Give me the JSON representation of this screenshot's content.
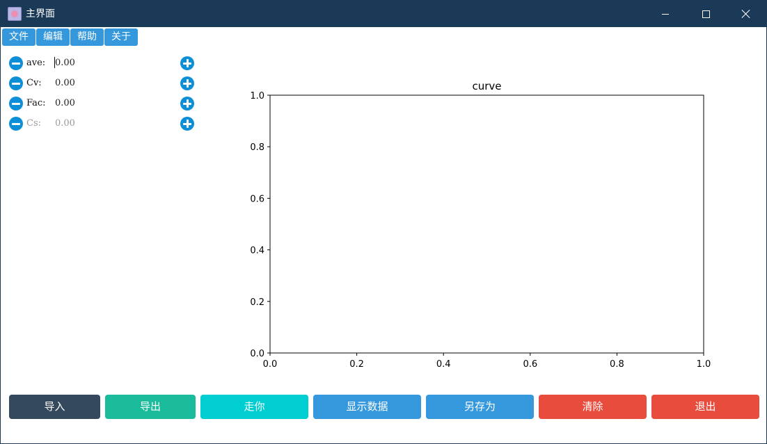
{
  "window": {
    "title": "主界面",
    "icon": "app-icon"
  },
  "menu": {
    "items": [
      "文件",
      "编辑",
      "帮助",
      "关于"
    ]
  },
  "params": [
    {
      "label": "ave:",
      "value": "0.00",
      "disabled": false,
      "focused": true
    },
    {
      "label": "Cv:",
      "value": "0.00",
      "disabled": false,
      "focused": false
    },
    {
      "label": "Fac:",
      "value": "0.00",
      "disabled": false,
      "focused": false
    },
    {
      "label": "Cs:",
      "value": "0.00",
      "disabled": true,
      "focused": false
    }
  ],
  "chart_data": {
    "type": "line",
    "title": "curve",
    "xlabel": "",
    "ylabel": "",
    "xlim": [
      0.0,
      1.0
    ],
    "ylim": [
      0.0,
      1.0
    ],
    "xticks": [
      "0.0",
      "0.2",
      "0.4",
      "0.6",
      "0.8",
      "1.0"
    ],
    "yticks": [
      "0.0",
      "0.2",
      "0.4",
      "0.6",
      "0.8",
      "1.0"
    ],
    "series": [],
    "grid": false
  },
  "buttons": {
    "import": "导入",
    "export": "导出",
    "go": "走你",
    "show_data": "显示数据",
    "save_as": "另存为",
    "clear": "清除",
    "exit": "退出"
  },
  "colors": {
    "titlebar": "#1b3a57",
    "menu": "#3598dc",
    "param_button": "#0d8fd8",
    "import": "#34495e",
    "export": "#1abc9c",
    "go": "#00ced1",
    "blue": "#3598dc",
    "red": "#e74c3c"
  }
}
